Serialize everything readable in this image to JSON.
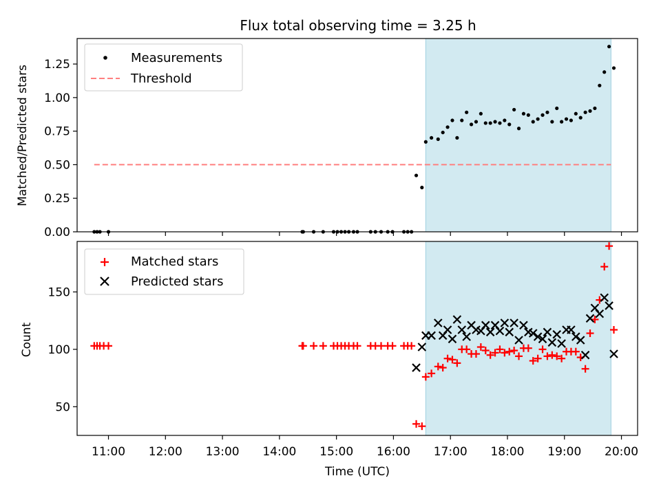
{
  "title": "Flux total observing time = 3.25 h",
  "colors": {
    "shade": "#add8e6",
    "threshold": "#ff7f7f",
    "measurement": "#000000",
    "matched": "#ff0000",
    "predicted": "#000000"
  },
  "chart_data": [
    {
      "type": "scatter",
      "ylabel": "Matched/Predicted stars",
      "ylim": [
        0,
        1.44
      ],
      "yticks": [
        0.0,
        0.25,
        0.5,
        0.75,
        1.0,
        1.25
      ],
      "ytick_labels": [
        "0.00",
        "0.25",
        "0.50",
        "0.75",
        "1.00",
        "1.25"
      ],
      "xlim": [
        "10:27",
        "20:17"
      ],
      "xticks": [
        "11:00",
        "12:00",
        "13:00",
        "14:00",
        "15:00",
        "16:00",
        "17:00",
        "18:00",
        "19:00",
        "20:00"
      ],
      "shaded_interval": [
        "16:34",
        "19:49"
      ],
      "legend": {
        "placement": "top-left",
        "entries": [
          "Measurements",
          "Threshold"
        ]
      },
      "threshold": {
        "name": "Threshold",
        "y": 0.5,
        "x_start": "10:45",
        "x_end": "19:49"
      },
      "series": [
        {
          "name": "Measurements",
          "points": [
            [
              "10:45",
              0
            ],
            [
              "10:48",
              0
            ],
            [
              "10:51",
              0
            ],
            [
              "11:00",
              0
            ],
            [
              "14:24",
              0
            ],
            [
              "14:25",
              0
            ],
            [
              "14:36",
              0
            ],
            [
              "14:46",
              0
            ],
            [
              "14:57",
              0
            ],
            [
              "15:01",
              0
            ],
            [
              "15:05",
              0
            ],
            [
              "15:09",
              0
            ],
            [
              "15:13",
              0
            ],
            [
              "15:18",
              0
            ],
            [
              "15:22",
              0
            ],
            [
              "15:36",
              0
            ],
            [
              "15:41",
              0
            ],
            [
              "15:47",
              0
            ],
            [
              "15:54",
              0
            ],
            [
              "15:59",
              0
            ],
            [
              "16:11",
              0
            ],
            [
              "16:15",
              0
            ],
            [
              "16:19",
              0
            ],
            [
              "16:24",
              0.42
            ],
            [
              "16:30",
              0.33
            ],
            [
              "16:34",
              0.67
            ],
            [
              "16:40",
              0.7
            ],
            [
              "16:47",
              0.69
            ],
            [
              "16:52",
              0.74
            ],
            [
              "16:57",
              0.78
            ],
            [
              "17:02",
              0.83
            ],
            [
              "17:07",
              0.7
            ],
            [
              "17:12",
              0.83
            ],
            [
              "17:17",
              0.89
            ],
            [
              "17:22",
              0.8
            ],
            [
              "17:27",
              0.82
            ],
            [
              "17:32",
              0.88
            ],
            [
              "17:37",
              0.81
            ],
            [
              "17:42",
              0.81
            ],
            [
              "17:47",
              0.82
            ],
            [
              "17:52",
              0.81
            ],
            [
              "17:57",
              0.83
            ],
            [
              "18:02",
              0.8
            ],
            [
              "18:07",
              0.91
            ],
            [
              "18:12",
              0.77
            ],
            [
              "18:17",
              0.88
            ],
            [
              "18:22",
              0.87
            ],
            [
              "18:27",
              0.82
            ],
            [
              "18:32",
              0.84
            ],
            [
              "18:37",
              0.87
            ],
            [
              "18:42",
              0.89
            ],
            [
              "18:47",
              0.82
            ],
            [
              "18:52",
              0.92
            ],
            [
              "18:57",
              0.82
            ],
            [
              "19:02",
              0.84
            ],
            [
              "19:07",
              0.83
            ],
            [
              "19:12",
              0.88
            ],
            [
              "19:17",
              0.85
            ],
            [
              "19:22",
              0.89
            ],
            [
              "19:27",
              0.9
            ],
            [
              "19:32",
              0.92
            ],
            [
              "19:37",
              1.09
            ],
            [
              "19:42",
              1.19
            ],
            [
              "19:47",
              1.38
            ],
            [
              "19:52",
              1.22
            ]
          ]
        }
      ]
    },
    {
      "type": "scatter",
      "xlabel": "Time (UTC)",
      "ylabel": "Count",
      "ylim": [
        25,
        194
      ],
      "yticks": [
        50,
        100,
        150
      ],
      "ytick_labels": [
        "50",
        "100",
        "150"
      ],
      "xlim": [
        "10:27",
        "20:17"
      ],
      "xticks": [
        "11:00",
        "12:00",
        "13:00",
        "14:00",
        "15:00",
        "16:00",
        "17:00",
        "18:00",
        "19:00",
        "20:00"
      ],
      "xtick_labels": [
        "11:00",
        "12:00",
        "13:00",
        "14:00",
        "15:00",
        "16:00",
        "17:00",
        "18:00",
        "19:00",
        "20:00"
      ],
      "shaded_interval": [
        "16:34",
        "19:49"
      ],
      "legend": {
        "placement": "top-left",
        "entries": [
          "Matched stars",
          "Predicted stars"
        ]
      },
      "series": [
        {
          "name": "Matched stars",
          "marker": "plus",
          "points": [
            [
              "10:45",
              103
            ],
            [
              "10:48",
              103
            ],
            [
              "10:51",
              103
            ],
            [
              "10:55",
              103
            ],
            [
              "11:00",
              103
            ],
            [
              "14:24",
              103
            ],
            [
              "14:25",
              103
            ],
            [
              "14:36",
              103
            ],
            [
              "14:46",
              103
            ],
            [
              "14:57",
              103
            ],
            [
              "15:01",
              103
            ],
            [
              "15:05",
              103
            ],
            [
              "15:09",
              103
            ],
            [
              "15:13",
              103
            ],
            [
              "15:18",
              103
            ],
            [
              "15:22",
              103
            ],
            [
              "15:36",
              103
            ],
            [
              "15:41",
              103
            ],
            [
              "15:47",
              103
            ],
            [
              "15:54",
              103
            ],
            [
              "15:59",
              103
            ],
            [
              "16:11",
              103
            ],
            [
              "16:15",
              103
            ],
            [
              "16:19",
              103
            ],
            [
              "16:24",
              35
            ],
            [
              "16:30",
              33
            ],
            [
              "16:34",
              76
            ],
            [
              "16:40",
              79
            ],
            [
              "16:47",
              85
            ],
            [
              "16:52",
              84
            ],
            [
              "16:57",
              92
            ],
            [
              "17:02",
              91
            ],
            [
              "17:07",
              88
            ],
            [
              "17:12",
              100
            ],
            [
              "17:17",
              100
            ],
            [
              "17:22",
              96
            ],
            [
              "17:27",
              96
            ],
            [
              "17:32",
              102
            ],
            [
              "17:37",
              99
            ],
            [
              "17:42",
              95
            ],
            [
              "17:47",
              97
            ],
            [
              "17:52",
              100
            ],
            [
              "17:57",
              97
            ],
            [
              "18:02",
              98
            ],
            [
              "18:07",
              99
            ],
            [
              "18:12",
              94
            ],
            [
              "18:17",
              101
            ],
            [
              "18:22",
              101
            ],
            [
              "18:27",
              90
            ],
            [
              "18:32",
              92
            ],
            [
              "18:37",
              100
            ],
            [
              "18:42",
              94
            ],
            [
              "18:47",
              95
            ],
            [
              "18:52",
              94
            ],
            [
              "18:57",
              92
            ],
            [
              "19:02",
              98
            ],
            [
              "19:07",
              98
            ],
            [
              "19:12",
              98
            ],
            [
              "19:17",
              93
            ],
            [
              "19:22",
              83
            ],
            [
              "19:27",
              114
            ],
            [
              "19:32",
              126
            ],
            [
              "19:37",
              143
            ],
            [
              "19:42",
              172
            ],
            [
              "19:47",
              190
            ],
            [
              "19:52",
              117
            ]
          ]
        },
        {
          "name": "Predicted stars",
          "marker": "x",
          "points": [
            [
              "16:24",
              84
            ],
            [
              "16:30",
              102
            ],
            [
              "16:34",
              112
            ],
            [
              "16:40",
              112
            ],
            [
              "16:47",
              123
            ],
            [
              "16:52",
              112
            ],
            [
              "16:57",
              117
            ],
            [
              "17:02",
              109
            ],
            [
              "17:07",
              126
            ],
            [
              "17:12",
              117
            ],
            [
              "17:17",
              111
            ],
            [
              "17:22",
              121
            ],
            [
              "17:27",
              117
            ],
            [
              "17:32",
              116
            ],
            [
              "17:37",
              121
            ],
            [
              "17:42",
              115
            ],
            [
              "17:47",
              121
            ],
            [
              "17:52",
              116
            ],
            [
              "17:57",
              123
            ],
            [
              "18:02",
              115
            ],
            [
              "18:07",
              123
            ],
            [
              "18:12",
              108
            ],
            [
              "18:17",
              121
            ],
            [
              "18:22",
              115
            ],
            [
              "18:27",
              114
            ],
            [
              "18:32",
              111
            ],
            [
              "18:37",
              109
            ],
            [
              "18:42",
              115
            ],
            [
              "18:47",
              106
            ],
            [
              "18:52",
              113
            ],
            [
              "18:57",
              105
            ],
            [
              "19:02",
              117
            ],
            [
              "19:07",
              117
            ],
            [
              "19:12",
              111
            ],
            [
              "19:17",
              108
            ],
            [
              "19:22",
              95
            ],
            [
              "19:27",
              127
            ],
            [
              "19:32",
              136
            ],
            [
              "19:37",
              131
            ],
            [
              "19:42",
              145
            ],
            [
              "19:47",
              138
            ],
            [
              "19:52",
              96
            ]
          ]
        }
      ]
    }
  ]
}
